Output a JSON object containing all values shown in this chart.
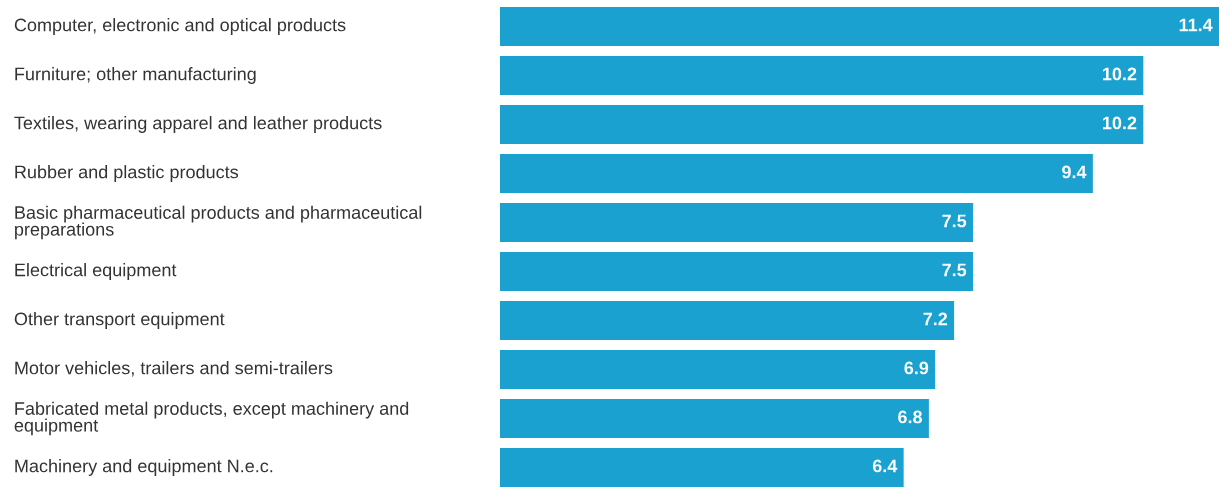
{
  "chart_data": {
    "type": "bar",
    "orientation": "horizontal",
    "categories": [
      "Computer, electronic and optical products",
      "Furniture; other manufacturing",
      "Textiles, wearing apparel and leather products",
      "Rubber and plastic products",
      "Basic pharmaceutical products and pharmaceutical preparations",
      "Electrical equipment",
      "Other transport equipment",
      "Motor vehicles, trailers and semi-trailers",
      "Fabricated metal products, except machinery and equipment",
      "Machinery and equipment N.e.c."
    ],
    "values": [
      11.4,
      10.2,
      10.2,
      9.4,
      7.5,
      7.5,
      7.2,
      6.9,
      6.8,
      6.4
    ],
    "color": "#1aa1cf",
    "xlim": [
      0,
      11.4
    ],
    "data_labels": true
  }
}
